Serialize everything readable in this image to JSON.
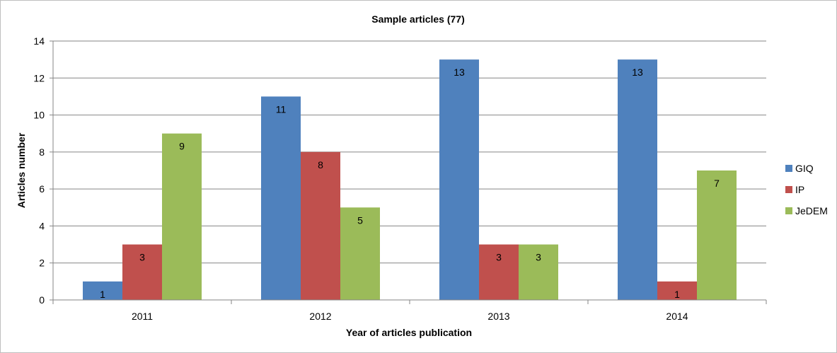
{
  "chart_data": {
    "type": "bar",
    "title": "Sample articles  (77)",
    "xlabel": "Year of articles publication",
    "ylabel": "Articles number",
    "categories": [
      "2011",
      "2012",
      "2013",
      "2014"
    ],
    "series": [
      {
        "name": "GIQ",
        "color": "#4f81bd",
        "values": [
          1,
          11,
          13,
          13
        ]
      },
      {
        "name": "IP",
        "color": "#c0504d",
        "values": [
          3,
          8,
          3,
          1
        ]
      },
      {
        "name": "JeDEM",
        "color": "#9bbb59",
        "values": [
          9,
          5,
          3,
          7
        ]
      }
    ],
    "ylim": [
      0,
      14
    ],
    "yticks": [
      0,
      2,
      4,
      6,
      8,
      10,
      12,
      14
    ],
    "grid": true,
    "data_labels": true,
    "legend_position": "right"
  }
}
